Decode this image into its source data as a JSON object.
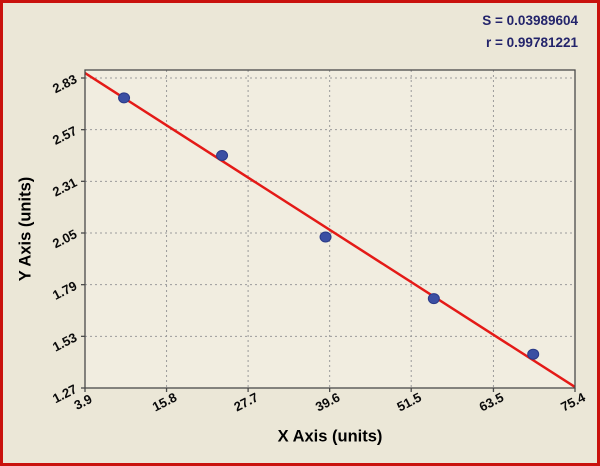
{
  "stats": {
    "s": "S = 0.03989604",
    "r": "r = 0.99781221"
  },
  "chart_data": {
    "type": "scatter",
    "title": "",
    "xlabel": "X Axis (units)",
    "ylabel": "Y Axis (units)",
    "xlim": [
      3.9,
      75.4
    ],
    "ylim": [
      1.27,
      2.83
    ],
    "x_ticks": [
      "3.9",
      "15.8",
      "27.7",
      "39.6",
      "51.5",
      "63.5",
      "75.4"
    ],
    "y_ticks": [
      "1.27",
      "1.53",
      "1.79",
      "2.05",
      "2.31",
      "2.57",
      "2.83"
    ],
    "grid": true,
    "legend": "none",
    "points": [
      {
        "x": 9.6,
        "y": 2.73
      },
      {
        "x": 23.9,
        "y": 2.44
      },
      {
        "x": 39.0,
        "y": 2.03
      },
      {
        "x": 54.8,
        "y": 1.72
      },
      {
        "x": 69.3,
        "y": 1.44
      }
    ],
    "fit_line": {
      "x1": 3.9,
      "y1": 2.855,
      "x2": 75.4,
      "y2": 1.275
    },
    "colors": {
      "page_bg": "#ebe7d7",
      "plot_bg": "#f1ede0",
      "border": "#c9120d",
      "line": "#e41a17",
      "point": "#3b4fa3",
      "point_edge": "#2a3a88",
      "grid": "#9b9b9b",
      "axis": "#4a4a4a",
      "tick_text": "#0a0a0a",
      "stats_text": "#23246b"
    }
  }
}
